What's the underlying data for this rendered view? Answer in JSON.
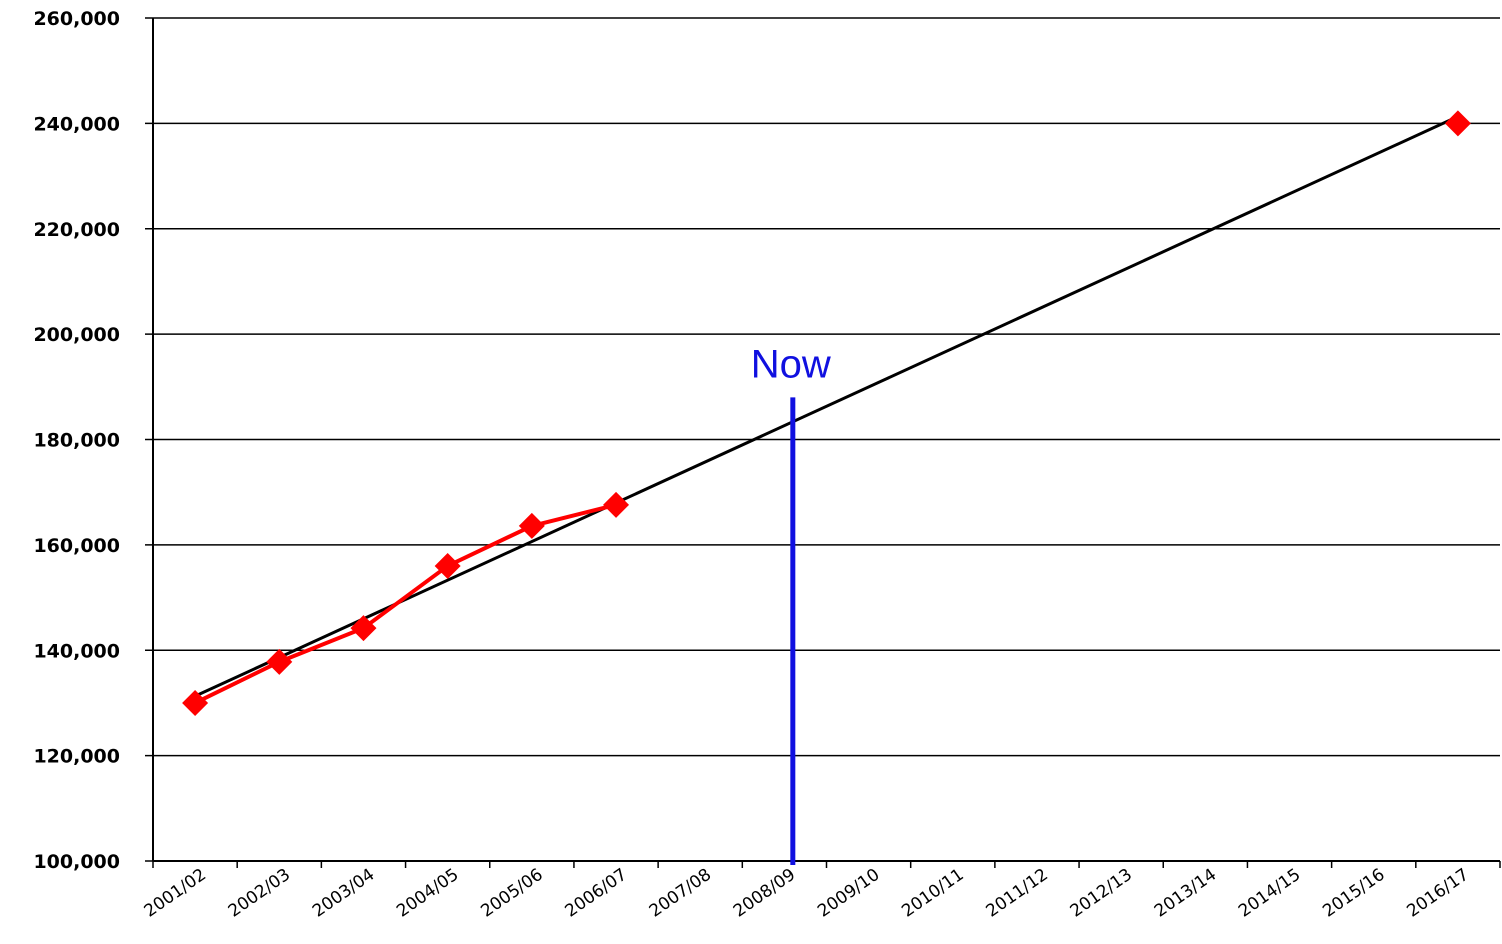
{
  "chart_data": {
    "type": "line",
    "title": "",
    "xlabel": "",
    "ylabel": "",
    "categories": [
      "2001/02",
      "2002/03",
      "2003/04",
      "2004/05",
      "2005/06",
      "2006/07",
      "2007/08",
      "2008/09",
      "2009/10",
      "2010/11",
      "2011/12",
      "2012/13",
      "2013/14",
      "2014/15",
      "2015/16",
      "2016/17"
    ],
    "y_ticks": [
      "100,000",
      "120,000",
      "140,000",
      "160,000",
      "180,000",
      "200,000",
      "220,000",
      "240,000",
      "260,000"
    ],
    "ylim": [
      100000,
      260000
    ],
    "grid": true,
    "series": [
      {
        "color": "#ff0000",
        "marker": "diamond",
        "points": [
          {
            "category": "2001/02",
            "value": 130000
          },
          {
            "category": "2002/03",
            "value": 137800
          },
          {
            "category": "2003/04",
            "value": 144200
          },
          {
            "category": "2004/05",
            "value": 156000
          },
          {
            "category": "2005/06",
            "value": 163600
          },
          {
            "category": "2006/07",
            "value": 167600
          },
          {
            "category": "2016/17",
            "value": 240000
          }
        ],
        "connected_through": "2006/07"
      }
    ],
    "trendline": {
      "color": "#000000",
      "start": {
        "category": "2001/02",
        "value": 131300
      },
      "end": {
        "category": "2016/17",
        "value": 241300
      }
    },
    "annotations": [
      {
        "label": "Now",
        "type": "vertical-line",
        "color": "#1010e0",
        "x_position": 7.6,
        "top_value": 188000
      }
    ]
  }
}
